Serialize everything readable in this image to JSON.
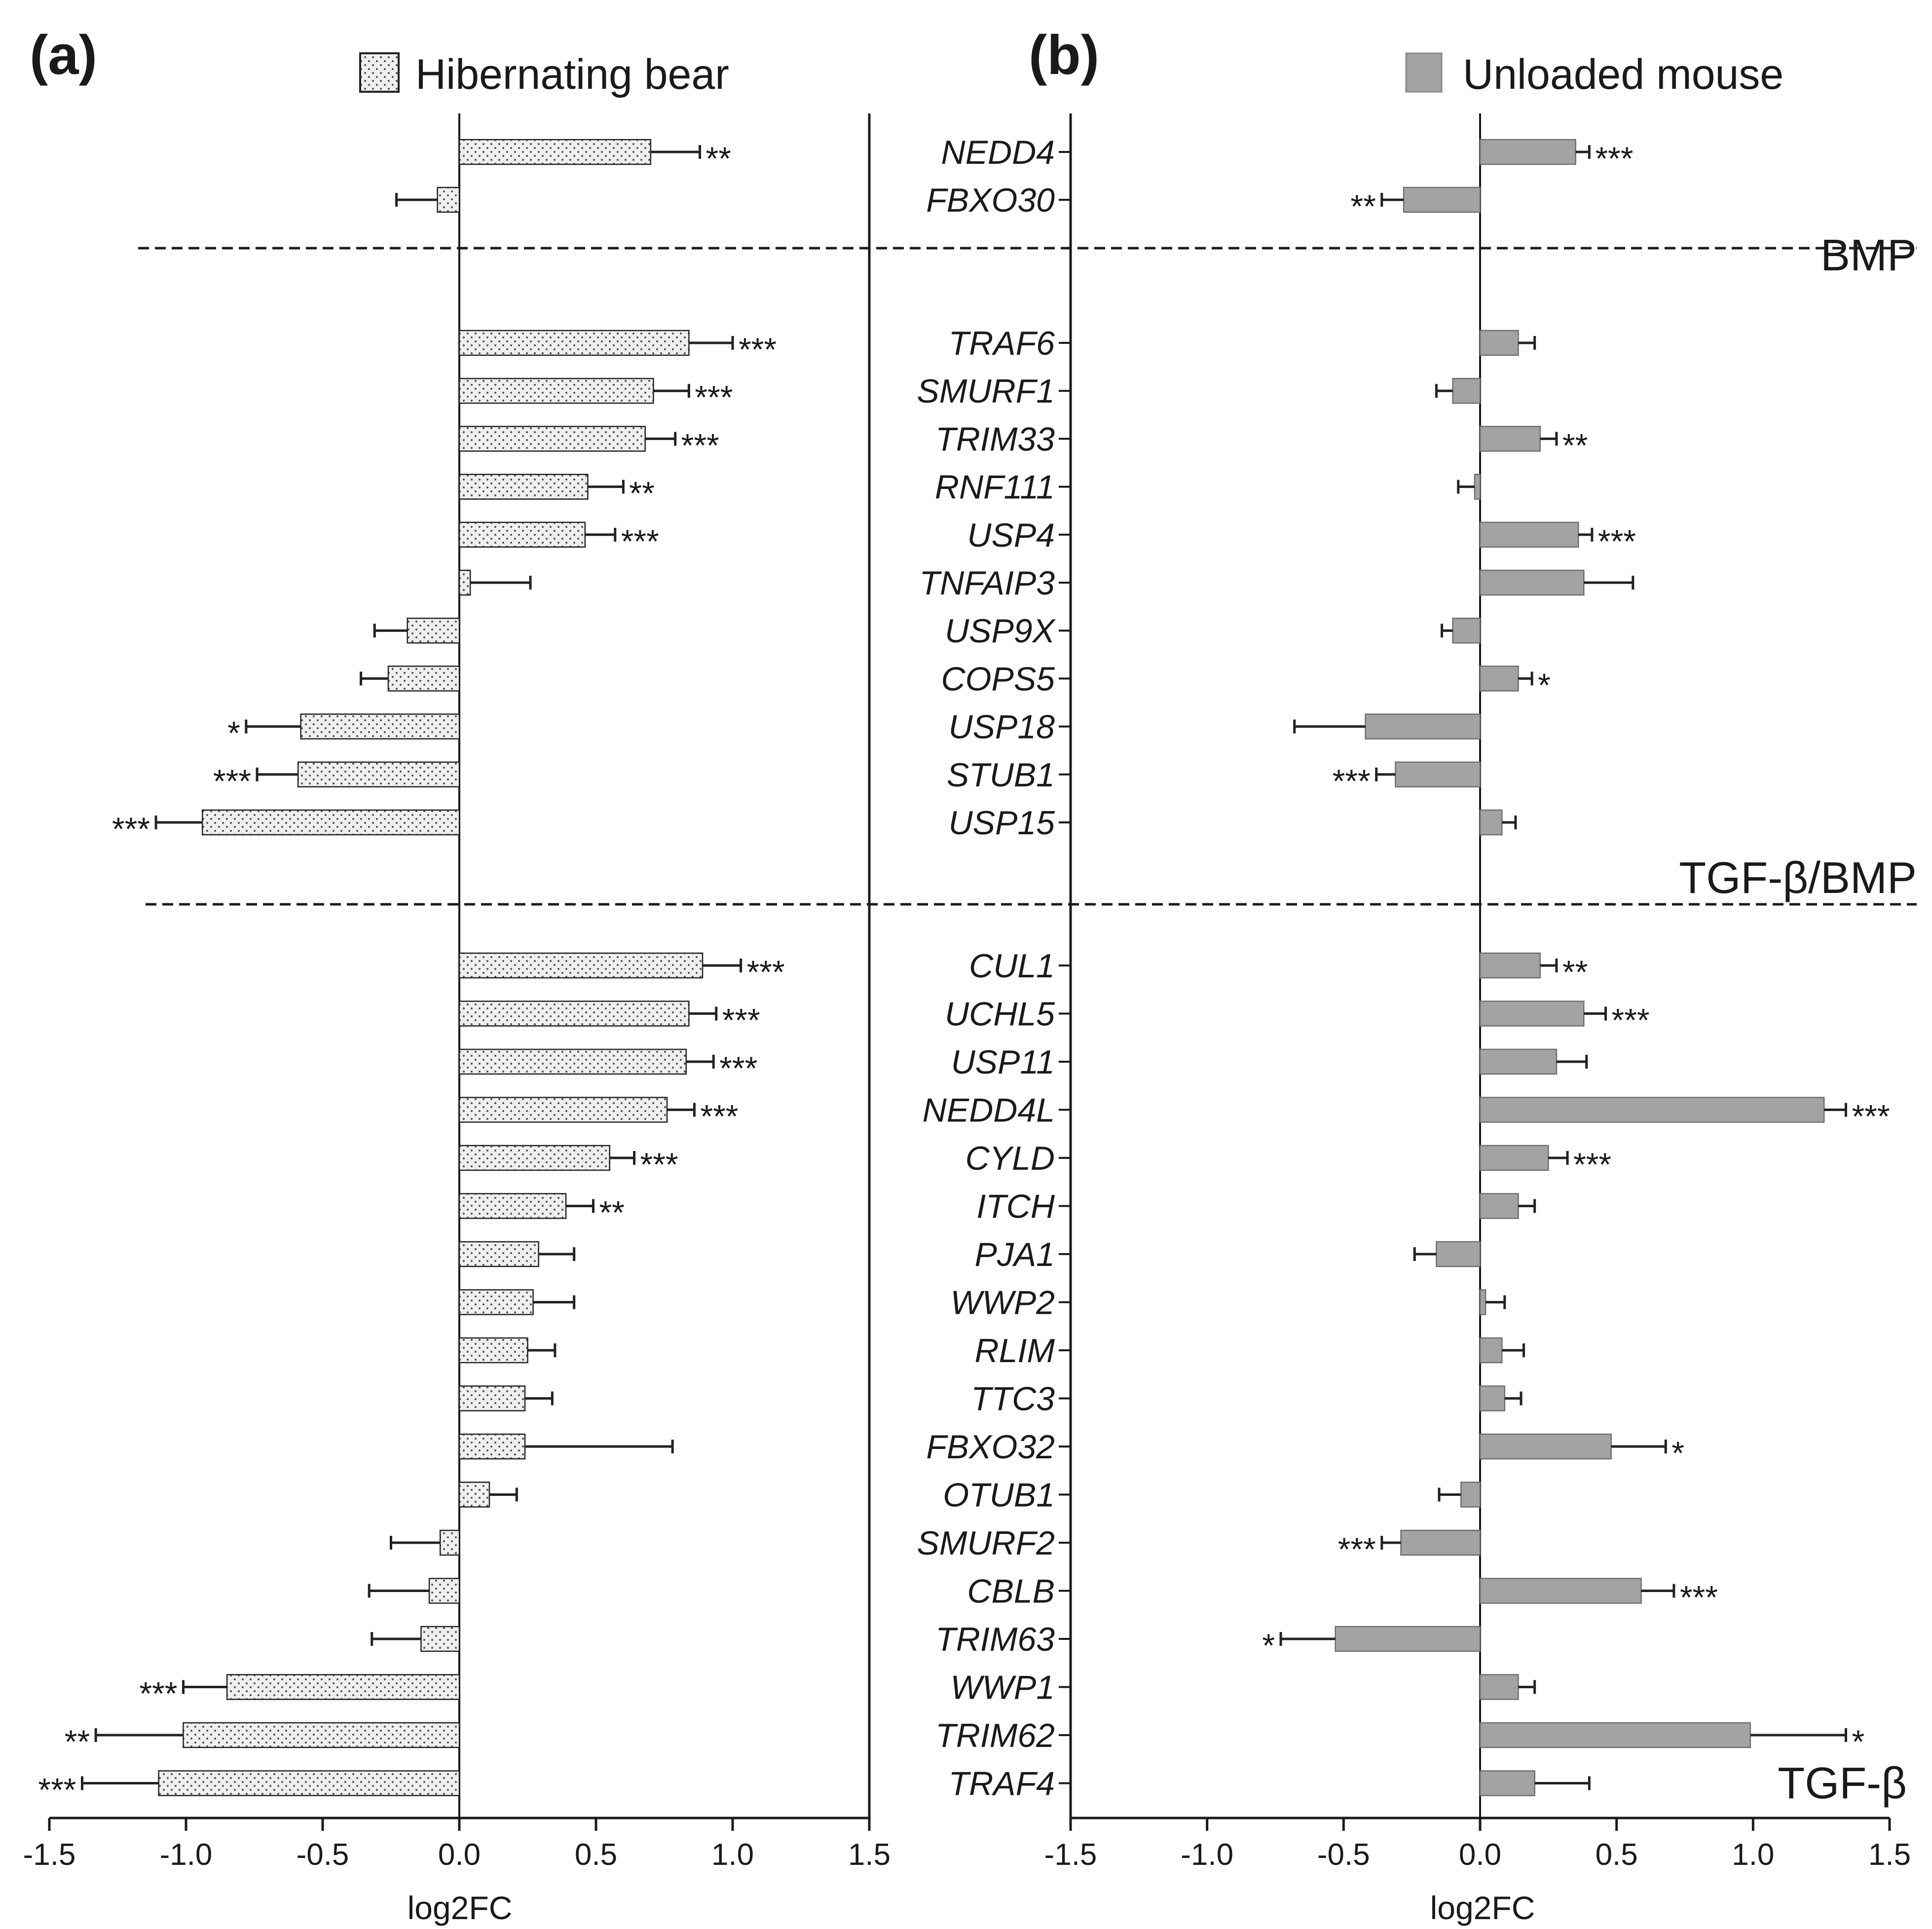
{
  "chart_data": [
    {
      "type": "bar",
      "orientation": "horizontal",
      "panel": "(a)",
      "legend": "Hibernating bear",
      "xlabel": "log2FC",
      "xlim": [
        -1.5,
        1.5
      ],
      "xticks": [
        "-1.5",
        "-1.0",
        "-0.5",
        "0.0",
        "0.5",
        "1.0",
        "1.5"
      ],
      "categories": [
        "NEDD4",
        "FBXO30",
        "TRAF6",
        "SMURF1",
        "TRIM33",
        "RNF111",
        "USP4",
        "TNFAIP3",
        "USP9X",
        "COPS5",
        "USP18",
        "STUB1",
        "USP15",
        "CUL1",
        "UCHL5",
        "USP11",
        "NEDD4L",
        "CYLD",
        "ITCH",
        "PJA1",
        "WWP2",
        "RLIM",
        "TTC3",
        "FBXO32",
        "OTUB1",
        "SMURF2",
        "CBLB",
        "TRIM63",
        "WWP1",
        "TRIM62",
        "TRAF4"
      ],
      "values": [
        0.7,
        -0.08,
        0.84,
        0.71,
        0.68,
        0.47,
        0.46,
        0.04,
        -0.19,
        -0.26,
        -0.58,
        -0.59,
        -0.94,
        0.89,
        0.84,
        0.83,
        0.76,
        0.55,
        0.39,
        0.29,
        0.27,
        0.25,
        0.24,
        0.24,
        0.11,
        -0.07,
        -0.11,
        -0.14,
        -0.85,
        -1.01,
        -1.1
      ],
      "errors": [
        0.18,
        0.15,
        0.16,
        0.13,
        0.11,
        0.13,
        0.11,
        0.22,
        0.12,
        0.1,
        0.2,
        0.15,
        0.17,
        0.14,
        0.1,
        0.1,
        0.1,
        0.09,
        0.1,
        0.13,
        0.15,
        0.1,
        0.1,
        0.54,
        0.1,
        0.18,
        0.22,
        0.18,
        0.16,
        0.32,
        0.28
      ],
      "significance": [
        "**",
        "",
        "***",
        "***",
        "***",
        "**",
        "***",
        "",
        "",
        "",
        "*",
        "***",
        "***",
        "***",
        "***",
        "***",
        "***",
        "***",
        "**",
        "",
        "",
        "",
        "",
        "",
        "",
        "",
        "",
        "",
        "***",
        "**",
        "***"
      ]
    },
    {
      "type": "bar",
      "orientation": "horizontal",
      "panel": "(b)",
      "legend": "Unloaded mouse",
      "xlabel": "log2FC",
      "xlim": [
        -1.5,
        1.5
      ],
      "xticks": [
        "-1.5",
        "-1.0",
        "-0.5",
        "0.0",
        "0.5",
        "1.0",
        "1.5"
      ],
      "categories": [
        "NEDD4",
        "FBXO30",
        "TRAF6",
        "SMURF1",
        "TRIM33",
        "RNF111",
        "USP4",
        "TNFAIP3",
        "USP9X",
        "COPS5",
        "USP18",
        "STUB1",
        "USP15",
        "CUL1",
        "UCHL5",
        "USP11",
        "NEDD4L",
        "CYLD",
        "ITCH",
        "PJA1",
        "WWP2",
        "RLIM",
        "TTC3",
        "FBXO32",
        "OTUB1",
        "SMURF2",
        "CBLB",
        "TRIM63",
        "WWP1",
        "TRIM62",
        "TRAF4"
      ],
      "values": [
        0.35,
        -0.28,
        0.14,
        -0.1,
        0.22,
        -0.02,
        0.36,
        0.38,
        -0.1,
        0.14,
        -0.42,
        -0.31,
        0.08,
        0.22,
        0.38,
        0.28,
        1.26,
        0.25,
        0.14,
        -0.16,
        0.02,
        0.08,
        0.09,
        0.48,
        -0.07,
        -0.29,
        0.59,
        -0.53,
        0.14,
        0.99,
        0.2
      ],
      "errors": [
        0.05,
        0.08,
        0.06,
        0.06,
        0.06,
        0.06,
        0.05,
        0.18,
        0.04,
        0.05,
        0.26,
        0.07,
        0.05,
        0.06,
        0.08,
        0.11,
        0.08,
        0.07,
        0.06,
        0.08,
        0.07,
        0.08,
        0.06,
        0.2,
        0.08,
        0.07,
        0.12,
        0.2,
        0.06,
        0.35,
        0.2
      ],
      "significance": [
        "***",
        "**",
        "",
        "",
        "**",
        "",
        "***",
        "",
        "",
        "*",
        "",
        "***",
        "",
        "**",
        "***",
        "",
        "***",
        "***",
        "",
        "",
        "",
        "",
        "",
        "*",
        "",
        "***",
        "***",
        "*",
        "",
        "*",
        ""
      ]
    }
  ],
  "group_labels": [
    "BMP",
    "TGF-β/BMP",
    "TGF-β"
  ],
  "colors": {
    "bear_fill": "#efefef",
    "bear_dots": "#555555",
    "mouse_fill": "#a3a3a5",
    "bar_stroke": "#222222",
    "axis": "#1a1a1a"
  }
}
